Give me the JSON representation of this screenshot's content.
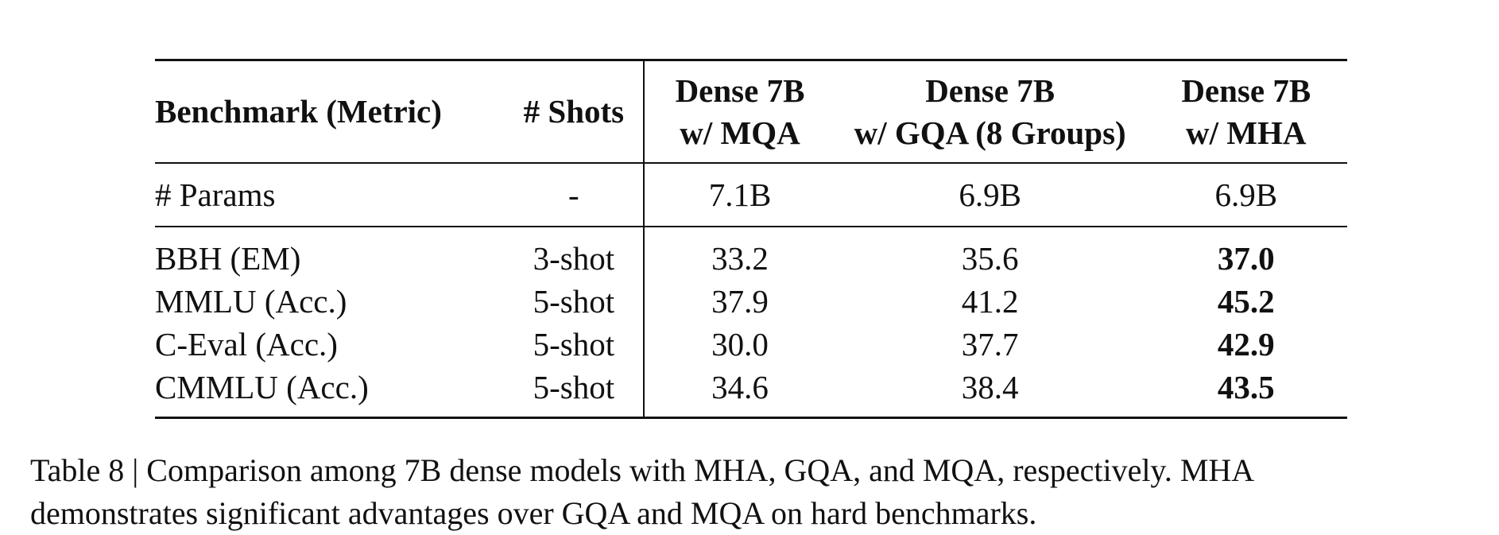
{
  "table": {
    "headers": {
      "benchmark": "Benchmark (Metric)",
      "shots": "# Shots",
      "model1_line1": "Dense 7B",
      "model1_line2": "w/ MQA",
      "model2_line1": "Dense 7B",
      "model2_line2": "w/ GQA (8 Groups)",
      "model3_line1": "Dense 7B",
      "model3_line2": "w/ MHA"
    },
    "params_row": {
      "label": "# Params",
      "shots": "-",
      "mqa": "7.1B",
      "gqa": "6.9B",
      "mha": "6.9B"
    },
    "rows": [
      {
        "benchmark": "BBH (EM)",
        "shots": "3-shot",
        "mqa": "33.2",
        "gqa": "35.6",
        "mha": "37.0"
      },
      {
        "benchmark": "MMLU (Acc.)",
        "shots": "5-shot",
        "mqa": "37.9",
        "gqa": "41.2",
        "mha": "45.2"
      },
      {
        "benchmark": "C-Eval (Acc.)",
        "shots": "5-shot",
        "mqa": "30.0",
        "gqa": "37.7",
        "mha": "42.9"
      },
      {
        "benchmark": "CMMLU (Acc.)",
        "shots": "5-shot",
        "mqa": "34.6",
        "gqa": "38.4",
        "mha": "43.5"
      }
    ]
  },
  "caption": {
    "line1": "Table 8 | Comparison among 7B dense models with MHA, GQA, and MQA, respectively. MHA",
    "line2": "demonstrates significant advantages over GQA and MQA on hard benchmarks."
  }
}
